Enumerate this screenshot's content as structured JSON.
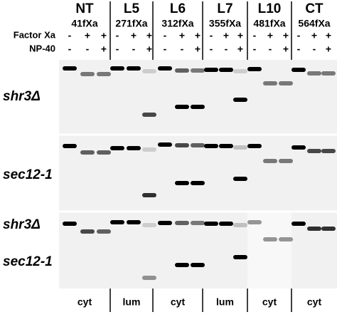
{
  "header": {
    "row_labels": [
      "Factor Xa",
      "NP-40"
    ]
  },
  "groups": [
    {
      "name": "NT",
      "construct": "41fXa",
      "factor_xa": [
        "-",
        "+",
        "+"
      ],
      "np40": [
        "-",
        "-",
        "+"
      ],
      "compartment": "cyt"
    },
    {
      "name": "L5",
      "construct": "271fXa",
      "factor_xa": [
        "-",
        "+",
        "+"
      ],
      "np40": [
        "-",
        "-",
        "+"
      ],
      "compartment": "lum"
    },
    {
      "name": "L6",
      "construct": "312fXa",
      "factor_xa": [
        "-",
        "+",
        "+"
      ],
      "np40": [
        "-",
        "-",
        "+"
      ],
      "compartment": "cyt"
    },
    {
      "name": "L7",
      "construct": "355fXa",
      "factor_xa": [
        "-",
        "+",
        "+"
      ],
      "np40": [
        "-",
        "-",
        "+"
      ],
      "compartment": "lum"
    },
    {
      "name": "L10",
      "construct": "481fXa",
      "factor_xa": [
        "-",
        "+",
        "+"
      ],
      "np40": [
        "-",
        "-",
        "+"
      ],
      "compartment": "cyt"
    },
    {
      "name": "CT",
      "construct": "564fXa",
      "factor_xa": [
        "-",
        "+",
        "+"
      ],
      "np40": [
        "-",
        "-",
        "+"
      ],
      "compartment": "cyt"
    }
  ],
  "panels": [
    {
      "label": [
        "shr3Δ"
      ]
    },
    {
      "label": [
        "sec12-1"
      ]
    },
    {
      "label": [
        "shr3Δ",
        "sec12-1"
      ]
    }
  ]
}
